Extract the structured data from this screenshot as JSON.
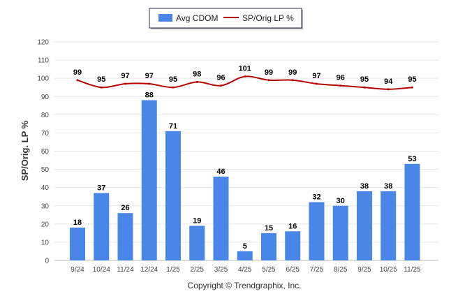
{
  "chart_data": {
    "type": "bar",
    "title": "",
    "xlabel": "",
    "ylabel": "SP/Orig. LP %",
    "ylim": [
      0,
      120
    ],
    "yticks": [
      0,
      10,
      20,
      30,
      40,
      50,
      60,
      70,
      80,
      90,
      100,
      110,
      120
    ],
    "grid": true,
    "legend_position": "top-center",
    "categories": [
      "9/24",
      "10/24",
      "11/24",
      "12/24",
      "1/25",
      "2/25",
      "3/25",
      "4/25",
      "5/25",
      "6/25",
      "7/25",
      "8/25",
      "9/25",
      "10/25",
      "11/25"
    ],
    "series": [
      {
        "name": "Avg CDOM",
        "type": "bar",
        "color": "#4a86e8",
        "values": [
          18,
          37,
          26,
          88,
          71,
          19,
          46,
          5,
          15,
          16,
          32,
          30,
          38,
          38,
          53
        ]
      },
      {
        "name": "SP/Orig LP %",
        "type": "line",
        "color": "#b30000",
        "values": [
          99,
          95,
          97,
          97,
          95,
          98,
          96,
          101,
          99,
          99,
          97,
          96,
          95,
          94,
          95
        ]
      }
    ]
  },
  "legend": {
    "bar_label": "Avg CDOM",
    "line_label": "SP/Orig LP %"
  },
  "footer": {
    "copyright": "Copyright © Trendgraphix, Inc."
  },
  "colors": {
    "bar": "#4a86e8",
    "line": "#b30000",
    "grid": "#e6e6e6"
  }
}
